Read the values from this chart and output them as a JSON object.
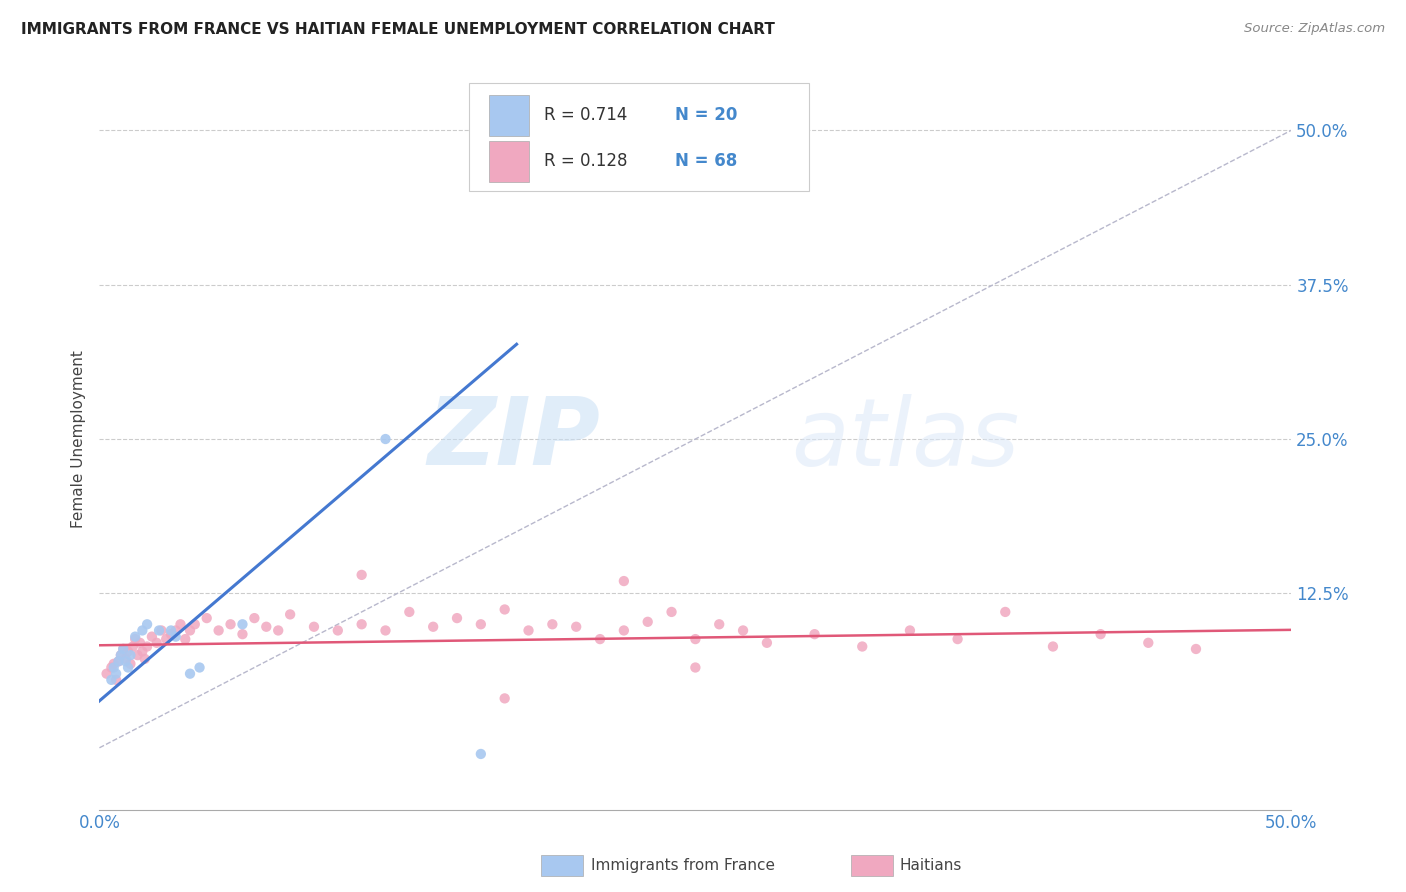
{
  "title": "IMMIGRANTS FROM FRANCE VS HAITIAN FEMALE UNEMPLOYMENT CORRELATION CHART",
  "source": "Source: ZipAtlas.com",
  "ylabel": "Female Unemployment",
  "ytick_vals": [
    0.125,
    0.25,
    0.375,
    0.5
  ],
  "ytick_labels": [
    "12.5%",
    "25.0%",
    "37.5%",
    "50.0%"
  ],
  "xlim": [
    0.0,
    0.5
  ],
  "ylim": [
    -0.05,
    0.55
  ],
  "background_color": "#ffffff",
  "grid_color": "#cccccc",
  "blue_color": "#a8c8f0",
  "pink_color": "#f0a8c0",
  "blue_line_color": "#4478d0",
  "pink_line_color": "#e05878",
  "dashed_line_color": "#b8b8cc",
  "watermark_zip": "ZIP",
  "watermark_atlas": "atlas",
  "france_x": [
    0.005,
    0.006,
    0.007,
    0.008,
    0.009,
    0.01,
    0.011,
    0.012,
    0.013,
    0.015,
    0.018,
    0.02,
    0.025,
    0.03,
    0.032,
    0.038,
    0.042,
    0.06,
    0.12,
    0.16
  ],
  "france_y": [
    0.055,
    0.065,
    0.06,
    0.07,
    0.075,
    0.08,
    0.07,
    0.065,
    0.075,
    0.09,
    0.095,
    0.1,
    0.095,
    0.095,
    0.09,
    0.06,
    0.065,
    0.1,
    0.25,
    -0.005
  ],
  "haiti_x": [
    0.003,
    0.005,
    0.006,
    0.007,
    0.008,
    0.009,
    0.01,
    0.011,
    0.012,
    0.013,
    0.014,
    0.015,
    0.016,
    0.017,
    0.018,
    0.019,
    0.02,
    0.022,
    0.024,
    0.026,
    0.028,
    0.03,
    0.032,
    0.034,
    0.036,
    0.038,
    0.04,
    0.045,
    0.05,
    0.055,
    0.06,
    0.065,
    0.07,
    0.075,
    0.08,
    0.09,
    0.1,
    0.11,
    0.12,
    0.13,
    0.14,
    0.15,
    0.16,
    0.17,
    0.18,
    0.19,
    0.2,
    0.21,
    0.22,
    0.23,
    0.24,
    0.25,
    0.26,
    0.27,
    0.28,
    0.3,
    0.32,
    0.34,
    0.36,
    0.38,
    0.4,
    0.42,
    0.44,
    0.46,
    0.22,
    0.25,
    0.11,
    0.17
  ],
  "haiti_y": [
    0.06,
    0.065,
    0.068,
    0.055,
    0.07,
    0.075,
    0.08,
    0.072,
    0.078,
    0.068,
    0.082,
    0.088,
    0.075,
    0.085,
    0.078,
    0.072,
    0.082,
    0.09,
    0.085,
    0.095,
    0.088,
    0.092,
    0.095,
    0.1,
    0.088,
    0.095,
    0.1,
    0.105,
    0.095,
    0.1,
    0.092,
    0.105,
    0.098,
    0.095,
    0.108,
    0.098,
    0.095,
    0.1,
    0.095,
    0.11,
    0.098,
    0.105,
    0.1,
    0.112,
    0.095,
    0.1,
    0.098,
    0.088,
    0.095,
    0.102,
    0.11,
    0.088,
    0.1,
    0.095,
    0.085,
    0.092,
    0.082,
    0.095,
    0.088,
    0.11,
    0.082,
    0.092,
    0.085,
    0.08,
    0.135,
    0.065,
    0.14,
    0.04
  ]
}
